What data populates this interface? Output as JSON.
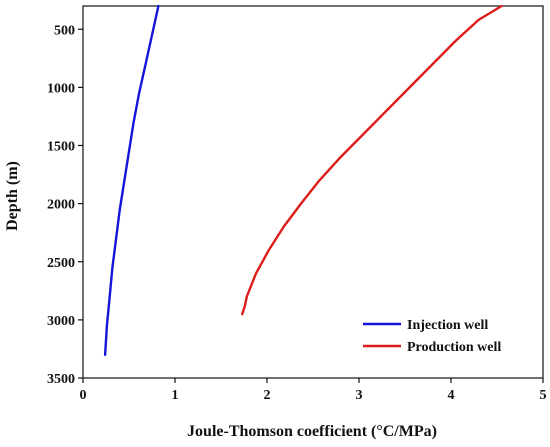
{
  "chart_data": {
    "type": "line",
    "title": "",
    "xlabel": "Joule-Thomson coefficient (°C/MPa)",
    "ylabel": "Depth (m)",
    "xlim": [
      0,
      5
    ],
    "ylim": [
      3500,
      300
    ],
    "y_inverted": true,
    "x_ticks": [
      0,
      1,
      2,
      3,
      4,
      5
    ],
    "y_ticks": [
      500,
      1000,
      1500,
      2000,
      2500,
      3000,
      3500
    ],
    "grid": false,
    "legend_position": "bottom-right",
    "series": [
      {
        "name": "Injection well",
        "color": "#1515d9",
        "points": [
          {
            "x": 0.82,
            "y": 300
          },
          {
            "x": 0.75,
            "y": 550
          },
          {
            "x": 0.68,
            "y": 800
          },
          {
            "x": 0.61,
            "y": 1050
          },
          {
            "x": 0.55,
            "y": 1300
          },
          {
            "x": 0.5,
            "y": 1550
          },
          {
            "x": 0.45,
            "y": 1800
          },
          {
            "x": 0.4,
            "y": 2050
          },
          {
            "x": 0.36,
            "y": 2300
          },
          {
            "x": 0.32,
            "y": 2550
          },
          {
            "x": 0.29,
            "y": 2800
          },
          {
            "x": 0.26,
            "y": 3050
          },
          {
            "x": 0.24,
            "y": 3300
          }
        ]
      },
      {
        "name": "Production well",
        "color": "#dd1c1c",
        "points": [
          {
            "x": 4.55,
            "y": 300
          },
          {
            "x": 4.3,
            "y": 420
          },
          {
            "x": 4.05,
            "y": 600
          },
          {
            "x": 3.8,
            "y": 800
          },
          {
            "x": 3.55,
            "y": 1000
          },
          {
            "x": 3.3,
            "y": 1200
          },
          {
            "x": 3.05,
            "y": 1400
          },
          {
            "x": 2.8,
            "y": 1600
          },
          {
            "x": 2.57,
            "y": 1800
          },
          {
            "x": 2.37,
            "y": 2000
          },
          {
            "x": 2.18,
            "y": 2200
          },
          {
            "x": 2.02,
            "y": 2400
          },
          {
            "x": 1.88,
            "y": 2600
          },
          {
            "x": 1.78,
            "y": 2800
          },
          {
            "x": 1.76,
            "y": 2880
          },
          {
            "x": 1.73,
            "y": 2950
          }
        ]
      }
    ]
  }
}
